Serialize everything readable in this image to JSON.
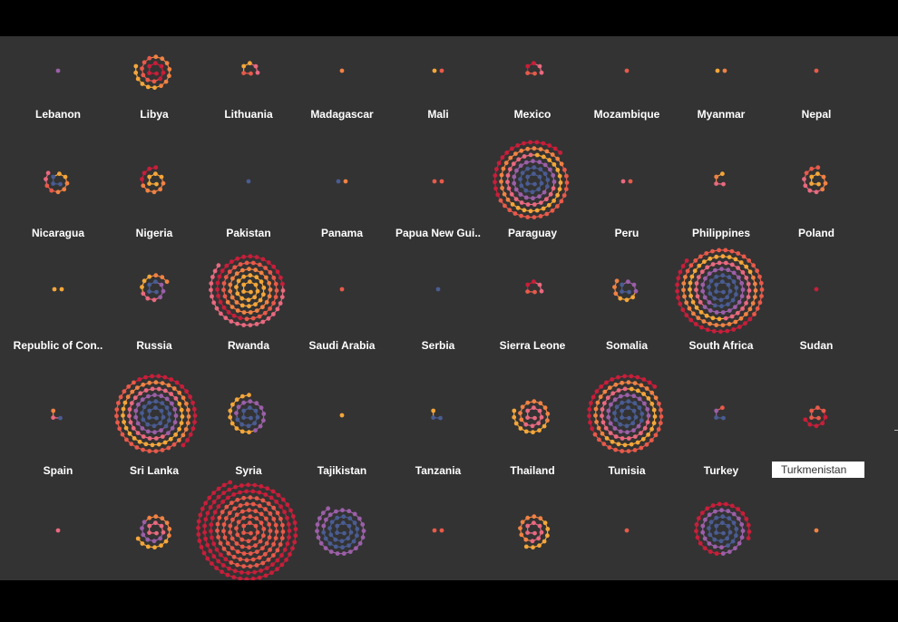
{
  "colors": {
    "background": "#333333",
    "frame": "#000000",
    "label": "#ffffff",
    "palette": [
      "#f4a63a",
      "#e9697f",
      "#9b5fa8",
      "#4a5c92",
      "#e85a4a",
      "#c81e3a",
      "#f08244"
    ]
  },
  "highlighted_label": "Turkmenistan",
  "chart_data": {
    "type": "scatter",
    "description_of_encoding": "",
    "small_multiples": [
      {
        "row": 0,
        "col": 0,
        "label": "Lebanon",
        "points": 1,
        "palette": [
          2
        ]
      },
      {
        "row": 0,
        "col": 1,
        "label": "Libya",
        "points": 26,
        "palette": [
          5,
          4,
          6,
          0
        ]
      },
      {
        "row": 0,
        "col": 2,
        "label": "Lithuania",
        "points": 6,
        "palette": [
          4,
          0,
          1
        ]
      },
      {
        "row": 0,
        "col": 3,
        "label": "Madagascar",
        "points": 1,
        "palette": [
          6
        ]
      },
      {
        "row": 0,
        "col": 4,
        "label": "Mali",
        "points": 2,
        "palette": [
          0,
          4
        ]
      },
      {
        "row": 0,
        "col": 5,
        "label": "Mexico",
        "points": 6,
        "palette": [
          4,
          5,
          1
        ]
      },
      {
        "row": 0,
        "col": 6,
        "label": "Mozambique",
        "points": 1,
        "palette": [
          4
        ]
      },
      {
        "row": 0,
        "col": 7,
        "label": "Myanmar",
        "points": 2,
        "palette": [
          0,
          6
        ]
      },
      {
        "row": 0,
        "col": 8,
        "label": "Nepal",
        "points": 1,
        "palette": [
          4
        ]
      },
      {
        "row": 1,
        "col": 0,
        "label": "Nicaragua",
        "points": 12,
        "palette": [
          3,
          0,
          6,
          4,
          1
        ]
      },
      {
        "row": 1,
        "col": 1,
        "label": "Nigeria",
        "points": 14,
        "palette": [
          0,
          6,
          5
        ]
      },
      {
        "row": 1,
        "col": 2,
        "label": "Pakistan",
        "points": 1,
        "palette": [
          3
        ]
      },
      {
        "row": 1,
        "col": 3,
        "label": "Panama",
        "points": 2,
        "palette": [
          3,
          6
        ]
      },
      {
        "row": 1,
        "col": 4,
        "label": "Papua New Gui..",
        "points": 2,
        "palette": [
          4,
          4
        ]
      },
      {
        "row": 1,
        "col": 5,
        "label": "Paraguay",
        "points": 120,
        "palette": [
          3,
          2,
          1,
          0,
          6,
          4,
          5
        ]
      },
      {
        "row": 1,
        "col": 6,
        "label": "Peru",
        "points": 2,
        "palette": [
          1,
          4
        ]
      },
      {
        "row": 1,
        "col": 7,
        "label": "Philippines",
        "points": 4,
        "palette": [
          1,
          6,
          0
        ]
      },
      {
        "row": 1,
        "col": 8,
        "label": "Poland",
        "points": 14,
        "palette": [
          0,
          6,
          1,
          4
        ]
      },
      {
        "row": 2,
        "col": 0,
        "label": "Republic of Con..",
        "points": 2,
        "palette": [
          0
        ]
      },
      {
        "row": 2,
        "col": 1,
        "label": "Russia",
        "points": 16,
        "palette": [
          3,
          2,
          1,
          0,
          6
        ]
      },
      {
        "row": 2,
        "col": 2,
        "label": "Rwanda",
        "points": 110,
        "palette": [
          0,
          6,
          4,
          5,
          1
        ]
      },
      {
        "row": 2,
        "col": 3,
        "label": "Saudi Arabia",
        "points": 1,
        "palette": [
          4
        ]
      },
      {
        "row": 2,
        "col": 4,
        "label": "Serbia",
        "points": 1,
        "palette": [
          3
        ]
      },
      {
        "row": 2,
        "col": 5,
        "label": "Sierra Leone",
        "points": 6,
        "palette": [
          4,
          5,
          1
        ]
      },
      {
        "row": 2,
        "col": 6,
        "label": "Somalia",
        "points": 12,
        "palette": [
          3,
          2,
          0,
          6
        ]
      },
      {
        "row": 2,
        "col": 7,
        "label": "South Africa",
        "points": 150,
        "palette": [
          3,
          2,
          1,
          0,
          6,
          4,
          5
        ]
      },
      {
        "row": 2,
        "col": 8,
        "label": "Sudan",
        "points": 1,
        "palette": [
          5
        ]
      },
      {
        "row": 3,
        "col": 0,
        "label": "Spain",
        "points": 3,
        "palette": [
          3,
          1,
          6
        ]
      },
      {
        "row": 3,
        "col": 1,
        "label": "Sri Lanka",
        "points": 130,
        "palette": [
          3,
          2,
          1,
          0,
          6,
          4,
          5
        ]
      },
      {
        "row": 3,
        "col": 2,
        "label": "Syria",
        "points": 30,
        "palette": [
          3,
          2,
          0
        ]
      },
      {
        "row": 3,
        "col": 3,
        "label": "Tajikistan",
        "points": 1,
        "palette": [
          0
        ]
      },
      {
        "row": 3,
        "col": 4,
        "label": "Tanzania",
        "points": 3,
        "palette": [
          3,
          0
        ]
      },
      {
        "row": 3,
        "col": 5,
        "label": "Thailand",
        "points": 26,
        "palette": [
          1,
          6,
          0
        ]
      },
      {
        "row": 3,
        "col": 6,
        "label": "Tunisia",
        "points": 120,
        "palette": [
          3,
          2,
          1,
          0,
          6,
          4,
          5
        ]
      },
      {
        "row": 3,
        "col": 7,
        "label": "Turkey",
        "points": 4,
        "palette": [
          3,
          2,
          4
        ]
      },
      {
        "row": 3,
        "col": 8,
        "label": "Turkmenistan",
        "points": 10,
        "palette": [
          4,
          5
        ]
      },
      {
        "row": 4,
        "col": 0,
        "label": "",
        "points": 1,
        "palette": [
          1
        ]
      },
      {
        "row": 4,
        "col": 1,
        "label": "",
        "points": 24,
        "palette": [
          1,
          2,
          6,
          0
        ]
      },
      {
        "row": 4,
        "col": 2,
        "label": "",
        "points": 200,
        "palette": [
          4,
          5
        ]
      },
      {
        "row": 4,
        "col": 3,
        "label": "",
        "points": 50,
        "palette": [
          3,
          2
        ]
      },
      {
        "row": 4,
        "col": 4,
        "label": "",
        "points": 2,
        "palette": [
          4
        ]
      },
      {
        "row": 4,
        "col": 5,
        "label": "",
        "points": 22,
        "palette": [
          1,
          6,
          0
        ]
      },
      {
        "row": 4,
        "col": 6,
        "label": "",
        "points": 1,
        "palette": [
          4
        ]
      },
      {
        "row": 4,
        "col": 7,
        "label": "",
        "points": 60,
        "palette": [
          3,
          2,
          5
        ]
      },
      {
        "row": 4,
        "col": 8,
        "label": "",
        "points": 1,
        "palette": [
          6
        ]
      }
    ]
  }
}
